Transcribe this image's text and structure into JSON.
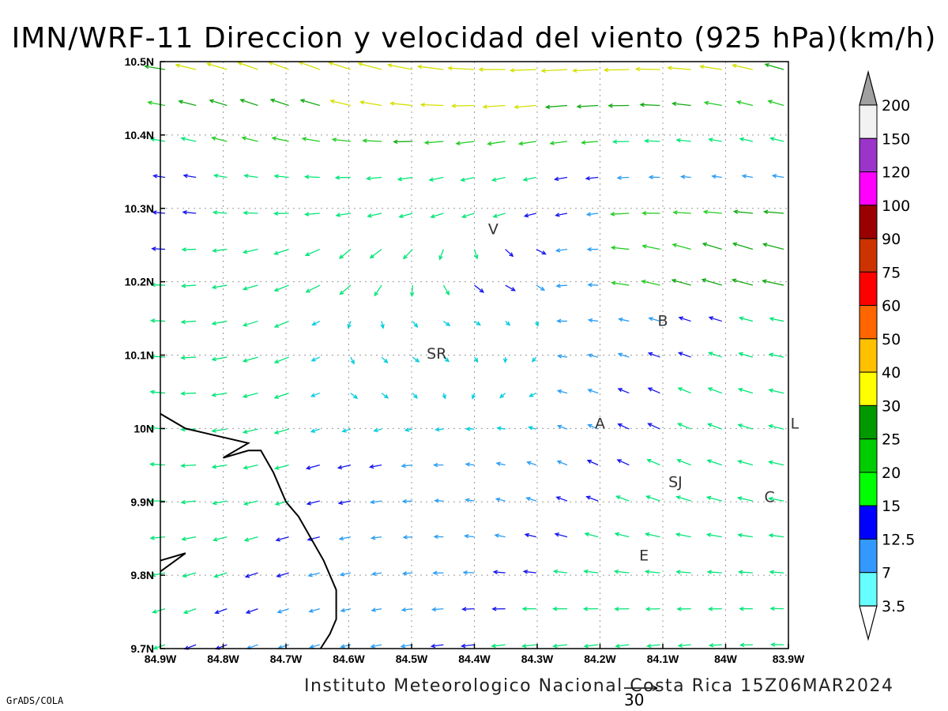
{
  "title": "IMN/WRF-11 Direccion y velocidad del viento (925 hPa)(km/h)",
  "footer": "Instituto Meteorologico Nacional Costa Rica 15Z06MAR2024",
  "credit": "GrADS/COLA",
  "reference_vector": {
    "label": "30"
  },
  "axes": {
    "x_labels": [
      "84.9W",
      "84.8W",
      "84.7W",
      "84.6W",
      "84.5W",
      "84.4W",
      "84.3W",
      "84.2W",
      "84.1W",
      "84W",
      "83.9W"
    ],
    "y_labels": [
      "10.5N",
      "10.4N",
      "10.3N",
      "10.2N",
      "10.1N",
      "10N",
      "9.9N",
      "9.8N",
      "9.7N"
    ],
    "lon_range": [
      -84.9,
      -83.9
    ],
    "lat_range": [
      9.7,
      10.5
    ],
    "grid": "dotted"
  },
  "cities": [
    {
      "label": "V",
      "lon": -84.37,
      "lat": 10.265
    },
    {
      "label": "SR",
      "lon": -84.46,
      "lat": 10.095
    },
    {
      "label": "B",
      "lon": -84.1,
      "lat": 10.14
    },
    {
      "label": "A",
      "lon": -84.2,
      "lat": 10.0
    },
    {
      "label": "SJ",
      "lon": -84.08,
      "lat": 9.92
    },
    {
      "label": "C",
      "lon": -83.93,
      "lat": 9.9
    },
    {
      "label": "E",
      "lon": -84.13,
      "lat": 9.82
    },
    {
      "label": "L",
      "lon": -83.89,
      "lat": 10.0
    }
  ],
  "colorbar": {
    "levels": [
      "200",
      "150",
      "120",
      "100",
      "90",
      "75",
      "60",
      "50",
      "40",
      "30",
      "25",
      "20",
      "15",
      "12.5",
      "7",
      "3.5"
    ],
    "colors": [
      "#f2f2f2",
      "#9b35c9",
      "#ff00ff",
      "#9b0000",
      "#cc3300",
      "#ff0000",
      "#ff6600",
      "#ffc000",
      "#ffff00",
      "#009900",
      "#00cc00",
      "#00ff00",
      "#0000ff",
      "#3399ff",
      "#66ffff"
    ],
    "overflow_color": "#a0a0a0"
  },
  "coastline": [
    [
      -84.9,
      10.02
    ],
    [
      -84.86,
      10.0
    ],
    [
      -84.81,
      9.99
    ],
    [
      -84.76,
      9.98
    ],
    [
      -84.8,
      9.96
    ],
    [
      -84.76,
      9.97
    ],
    [
      -84.74,
      9.97
    ],
    [
      -84.72,
      9.94
    ],
    [
      -84.71,
      9.92
    ],
    [
      -84.7,
      9.9
    ],
    [
      -84.68,
      9.88
    ],
    [
      -84.66,
      9.85
    ],
    [
      -84.64,
      9.82
    ],
    [
      -84.63,
      9.8
    ],
    [
      -84.62,
      9.78
    ],
    [
      -84.62,
      9.76
    ],
    [
      -84.62,
      9.74
    ],
    [
      -84.63,
      9.72
    ],
    [
      -84.645,
      9.7
    ]
  ],
  "island": [
    [
      -84.9,
      9.82
    ],
    [
      -84.86,
      9.83
    ],
    [
      -84.9,
      9.805
    ]
  ]
}
